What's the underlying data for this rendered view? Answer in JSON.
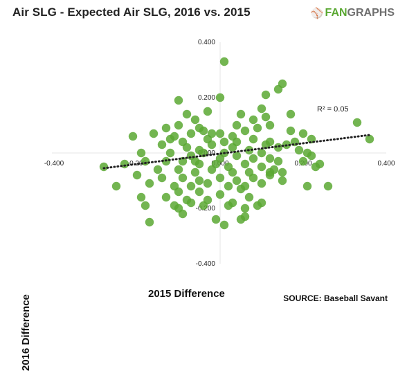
{
  "header": {
    "title": "Air  SLG - Expected Air SLG, 2016 vs. 2015",
    "brand_fan": "FAN",
    "brand_graphs": "GRAPHS",
    "brand_icon": "fangraphs-logo-icon"
  },
  "footer": {
    "source": "SOURCE:  Baseball Savant"
  },
  "chart_data": {
    "type": "scatter",
    "xlabel": "2015 Difference",
    "ylabel": "2016 Difference",
    "xlim": [
      -0.4,
      0.4
    ],
    "ylim": [
      -0.4,
      0.4
    ],
    "xticks": [
      "-0.400",
      "-0.200",
      "0.000",
      "0.200",
      "0.400"
    ],
    "yticks": [
      "0.400",
      "0.200",
      "0.000",
      "-0.200",
      "-0.400"
    ],
    "grid": false,
    "point_color": "#5aa832",
    "trendline": {
      "x": [
        -0.28,
        0.36
      ],
      "y": [
        -0.055,
        0.065
      ],
      "style": "dotted",
      "color": "#222222"
    },
    "annotation": "R² = 0.05",
    "points": [
      [
        0.01,
        0.33
      ],
      [
        0.15,
        0.25
      ],
      [
        0.14,
        0.23
      ],
      [
        0.11,
        0.21
      ],
      [
        -0.1,
        0.19
      ],
      [
        0.0,
        0.2
      ],
      [
        0.1,
        0.16
      ],
      [
        0.17,
        0.14
      ],
      [
        0.05,
        0.14
      ],
      [
        0.11,
        0.13
      ],
      [
        0.33,
        0.11
      ],
      [
        -0.03,
        0.15
      ],
      [
        -0.08,
        0.14
      ],
      [
        0.08,
        0.12
      ],
      [
        -0.06,
        0.12
      ],
      [
        -0.1,
        0.1
      ],
      [
        0.12,
        0.1
      ],
      [
        0.36,
        0.05
      ],
      [
        0.2,
        0.07
      ],
      [
        0.22,
        0.05
      ],
      [
        0.18,
        0.04
      ],
      [
        0.17,
        0.08
      ],
      [
        0.04,
        0.1
      ],
      [
        -0.05,
        0.09
      ],
      [
        -0.13,
        0.09
      ],
      [
        -0.11,
        0.06
      ],
      [
        -0.07,
        0.07
      ],
      [
        -0.04,
        0.08
      ],
      [
        0.0,
        0.07
      ],
      [
        0.06,
        0.08
      ],
      [
        0.09,
        0.09
      ],
      [
        -0.21,
        0.06
      ],
      [
        -0.16,
        0.07
      ],
      [
        -0.12,
        0.05
      ],
      [
        -0.09,
        0.04
      ],
      [
        -0.03,
        0.05
      ],
      [
        0.01,
        0.04
      ],
      [
        0.03,
        0.06
      ],
      [
        0.08,
        0.05
      ],
      [
        0.12,
        0.04
      ],
      [
        0.14,
        0.02
      ],
      [
        0.16,
        0.03
      ],
      [
        -0.14,
        0.03
      ],
      [
        -0.08,
        0.02
      ],
      [
        -0.05,
        0.01
      ],
      [
        -0.02,
        0.03
      ],
      [
        0.03,
        0.02
      ],
      [
        0.07,
        0.01
      ],
      [
        0.1,
        0.0
      ],
      [
        0.19,
        0.01
      ],
      [
        0.21,
        0.0
      ],
      [
        0.22,
        -0.01
      ],
      [
        -0.19,
        0.0
      ],
      [
        -0.12,
        0.0
      ],
      [
        -0.07,
        -0.01
      ],
      [
        -0.04,
        0.0
      ],
      [
        0.0,
        -0.02
      ],
      [
        0.04,
        -0.01
      ],
      [
        0.08,
        -0.02
      ],
      [
        0.12,
        -0.02
      ],
      [
        0.14,
        -0.03
      ],
      [
        0.2,
        -0.03
      ],
      [
        0.24,
        -0.04
      ],
      [
        -0.23,
        -0.04
      ],
      [
        -0.18,
        -0.03
      ],
      [
        -0.13,
        -0.03
      ],
      [
        -0.09,
        -0.03
      ],
      [
        -0.05,
        -0.04
      ],
      [
        -0.01,
        -0.04
      ],
      [
        0.02,
        -0.05
      ],
      [
        0.06,
        -0.04
      ],
      [
        0.1,
        -0.05
      ],
      [
        0.13,
        -0.06
      ],
      [
        0.23,
        -0.05
      ],
      [
        -0.28,
        -0.05
      ],
      [
        -0.15,
        -0.06
      ],
      [
        -0.1,
        -0.06
      ],
      [
        -0.06,
        -0.07
      ],
      [
        -0.02,
        -0.06
      ],
      [
        0.03,
        -0.07
      ],
      [
        0.07,
        -0.07
      ],
      [
        0.12,
        -0.08
      ],
      [
        0.15,
        -0.07
      ],
      [
        -0.2,
        -0.08
      ],
      [
        -0.14,
        -0.09
      ],
      [
        -0.09,
        -0.09
      ],
      [
        -0.05,
        -0.1
      ],
      [
        0.0,
        -0.09
      ],
      [
        0.04,
        -0.1
      ],
      [
        0.08,
        -0.09
      ],
      [
        0.15,
        -0.1
      ],
      [
        -0.17,
        -0.11
      ],
      [
        -0.11,
        -0.12
      ],
      [
        -0.07,
        -0.12
      ],
      [
        -0.03,
        -0.11
      ],
      [
        0.02,
        -0.12
      ],
      [
        0.06,
        -0.12
      ],
      [
        0.1,
        -0.11
      ],
      [
        0.21,
        -0.12
      ],
      [
        0.26,
        -0.12
      ],
      [
        -0.25,
        -0.12
      ],
      [
        -0.1,
        -0.14
      ],
      [
        -0.05,
        -0.14
      ],
      [
        0.0,
        -0.15
      ],
      [
        0.05,
        -0.13
      ],
      [
        -0.19,
        -0.16
      ],
      [
        -0.13,
        -0.16
      ],
      [
        -0.08,
        -0.17
      ],
      [
        -0.03,
        -0.17
      ],
      [
        0.03,
        -0.18
      ],
      [
        0.07,
        -0.16
      ],
      [
        -0.18,
        -0.19
      ],
      [
        -0.11,
        -0.19
      ],
      [
        -0.07,
        -0.18
      ],
      [
        -0.04,
        -0.19
      ],
      [
        0.02,
        -0.19
      ],
      [
        0.06,
        -0.2
      ],
      [
        -0.1,
        -0.2
      ],
      [
        0.06,
        -0.23
      ],
      [
        -0.17,
        -0.25
      ],
      [
        -0.01,
        -0.24
      ],
      [
        0.01,
        -0.26
      ],
      [
        0.05,
        -0.24
      ],
      [
        -0.09,
        -0.22
      ],
      [
        0.1,
        -0.18
      ],
      [
        0.09,
        -0.19
      ],
      [
        0.12,
        -0.07
      ],
      [
        0.11,
        0.03
      ],
      [
        -0.02,
        0.07
      ],
      [
        0.04,
        0.04
      ],
      [
        -0.06,
        -0.03
      ],
      [
        0.01,
        0.0
      ]
    ]
  }
}
